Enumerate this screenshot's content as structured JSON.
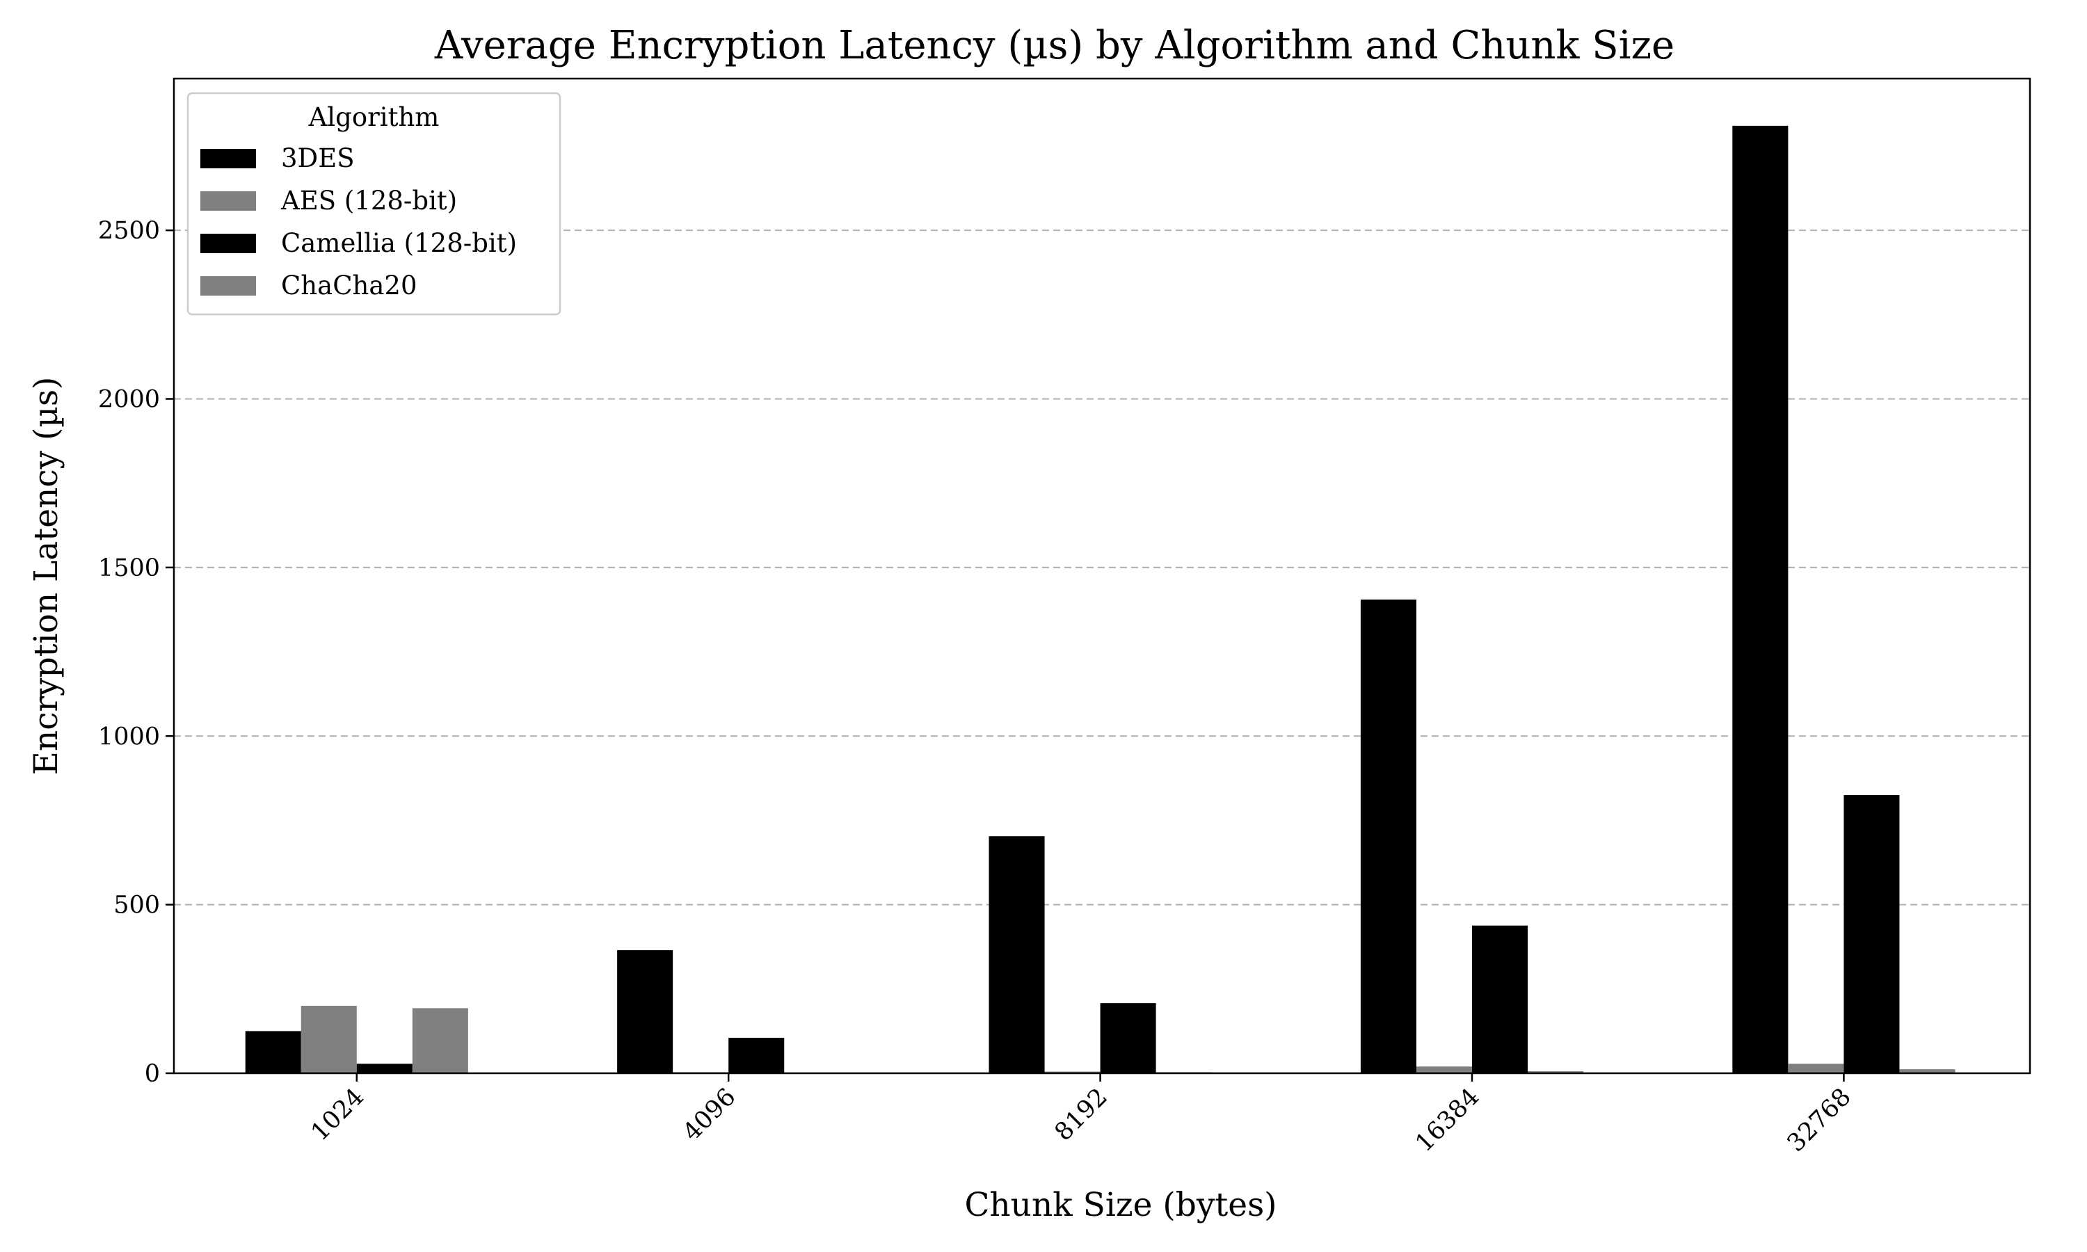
{
  "chart_data": {
    "type": "bar",
    "title": "Average Encryption Latency (µs) by Algorithm and Chunk Size",
    "xlabel": "Chunk Size (bytes)",
    "ylabel": "Encryption Latency (µs)",
    "categories": [
      "1024",
      "4096",
      "8192",
      "16384",
      "32768"
    ],
    "series": [
      {
        "name": "3DES",
        "color": "#000000",
        "values": [
          125,
          365,
          703,
          1405,
          2810
        ]
      },
      {
        "name": "AES (128-bit)",
        "color": "#808080",
        "values": [
          200,
          3,
          5,
          20,
          28
        ]
      },
      {
        "name": "Camellia (128-bit)",
        "color": "#000000",
        "values": [
          28,
          105,
          208,
          438,
          825
        ]
      },
      {
        "name": "ChaCha20",
        "color": "#808080",
        "values": [
          193,
          2,
          3,
          6,
          12
        ]
      }
    ],
    "ylim": [
      0,
      2950
    ],
    "yticks": [
      0,
      500,
      1000,
      1500,
      2000,
      2500
    ],
    "grid": "y-dashed",
    "legend": {
      "title": "Algorithm",
      "placement": "top-left"
    }
  }
}
